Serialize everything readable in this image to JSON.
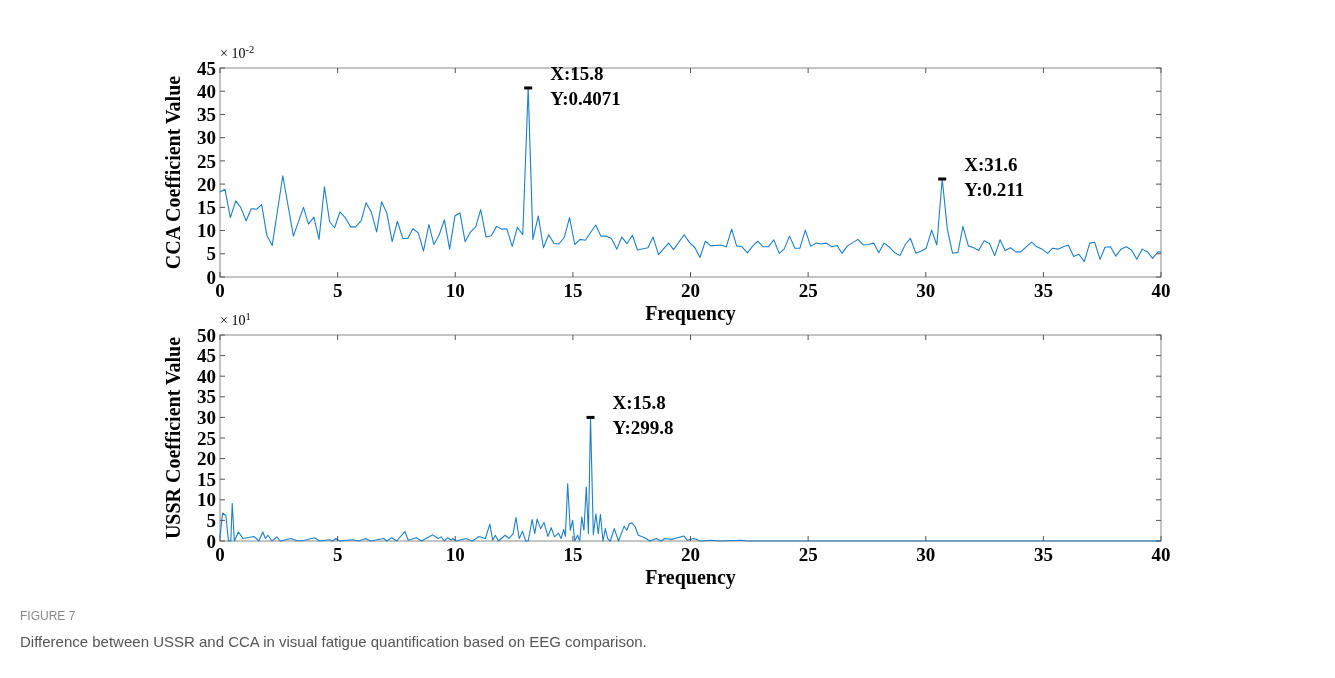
{
  "chart_data": [
    {
      "type": "line",
      "xlabel": "Frequency",
      "ylabel": "CCA Coefficient Value",
      "xlim": [
        0,
        40
      ],
      "ylim": [
        0,
        45
      ],
      "xticks": [
        0,
        5,
        10,
        15,
        20,
        25,
        30,
        35,
        40
      ],
      "yticks": [
        0,
        5,
        10,
        15,
        20,
        25,
        30,
        35,
        40,
        45
      ],
      "grid": false,
      "annotations": [
        "× 10$^{-2}$",
        {
          "text": "X:15.8\nY:0.4071",
          "x": 13.1,
          "y": 40.7
        },
        {
          "text": "X:31.6\nY:0.211",
          "x": 30.7,
          "y": 21.1
        }
      ],
      "series": [
        {
          "color": "#1f7fc8",
          "x": [
            0,
            0.21,
            0.44,
            0.67,
            0.88,
            1.11,
            1.33,
            1.56,
            1.77,
            1.99,
            2.22,
            2.67,
            3.12,
            3.55,
            3.76,
            3.99,
            4.21,
            4.44,
            4.66,
            4.87,
            5.1,
            5.32,
            5.55,
            5.76,
            6.0,
            6.21,
            6.43,
            6.66,
            6.87,
            7.09,
            7.32,
            7.54,
            7.77,
            7.98,
            8.2,
            8.43,
            8.65,
            8.88,
            9.09,
            9.31,
            9.54,
            9.76,
            9.99,
            10.2,
            10.42,
            10.65,
            10.87,
            11.08,
            11.31,
            11.53,
            11.76,
            11.98,
            12.19,
            12.42,
            12.64,
            12.87,
            13.1,
            13.3,
            13.53,
            13.75,
            13.97,
            14.2,
            14.41,
            14.63,
            14.86,
            15.08,
            15.31,
            15.53,
            15.97,
            16.19,
            16.42,
            16.64,
            16.87,
            17.08,
            17.3,
            17.53,
            17.75,
            18.19,
            18.41,
            18.64,
            19.07,
            19.28,
            19.73,
            19.96,
            20.19,
            20.4,
            20.63,
            20.86,
            21.29,
            21.52,
            21.75,
            21.96,
            22.19,
            22.42,
            22.65,
            22.86,
            23.09,
            23.31,
            23.54,
            23.77,
            23.98,
            24.21,
            24.44,
            24.65,
            24.88,
            25.11,
            25.34,
            25.55,
            25.78,
            26.0,
            26.23,
            26.44,
            26.67,
            26.9,
            27.12,
            27.34,
            27.56,
            27.79,
            28.0,
            28.23,
            28.46,
            28.69,
            28.9,
            29.13,
            29.35,
            29.58,
            29.81,
            30.02,
            30.25,
            30.47,
            30.7,
            30.92,
            31.14,
            31.37,
            31.58,
            31.81,
            32.04,
            32.25,
            32.48,
            32.71,
            32.93,
            33.16,
            33.37,
            33.6,
            33.83,
            34.04,
            34.27,
            34.5,
            34.72,
            34.95,
            35.18,
            35.39,
            35.62,
            35.85,
            36.06,
            36.29,
            36.51,
            36.74,
            36.97,
            37.18,
            37.41,
            37.62,
            37.85,
            38.08,
            38.3,
            38.52,
            38.75,
            38.97,
            39.2,
            39.43,
            39.64,
            39.87,
            40
          ],
          "values": [
            18.3,
            18.9,
            12.8,
            16.4,
            15.0,
            12.1,
            14.7,
            14.6,
            15.6,
            9.0,
            6.8,
            21.8,
            8.8,
            15.0,
            11.4,
            12.9,
            8.1,
            19.4,
            11.9,
            10.6,
            14.0,
            12.8,
            10.8,
            10.8,
            12.1,
            16.0,
            14.0,
            9.7,
            16.2,
            13.8,
            7.6,
            12.0,
            8.3,
            8.3,
            10.4,
            9.5,
            5.6,
            11.3,
            7.0,
            9.0,
            12.3,
            6.0,
            13.2,
            13.8,
            7.6,
            9.7,
            10.8,
            14.5,
            8.6,
            8.9,
            10.9,
            10.3,
            10.4,
            6.6,
            10.7,
            9.1,
            40.7,
            8.1,
            13.1,
            6.3,
            9.1,
            7.2,
            7.1,
            8.5,
            12.8,
            7.0,
            8.1,
            7.9,
            11.2,
            8.8,
            8.8,
            8.3,
            6.0,
            8.6,
            7.2,
            9.0,
            5.8,
            6.3,
            8.6,
            4.8,
            7.3,
            5.9,
            9.1,
            7.4,
            6.3,
            4.2,
            7.7,
            6.7,
            6.9,
            6.5,
            10.3,
            6.7,
            6.5,
            5.2,
            6.7,
            7.7,
            6.5,
            6.5,
            8.0,
            5.1,
            6.0,
            8.8,
            6.2,
            6.2,
            10.1,
            6.6,
            7.3,
            7.1,
            7.3,
            6.5,
            6.8,
            5.1,
            6.7,
            7.4,
            8.1,
            6.9,
            7.0,
            7.3,
            5.2,
            7.3,
            6.4,
            5.2,
            4.6,
            7.0,
            8.3,
            5.1,
            5.6,
            6.2,
            10.1,
            6.9,
            21.1,
            10.2,
            5.1,
            5.3,
            10.9,
            6.7,
            6.3,
            5.7,
            7.8,
            7.2,
            4.6,
            8.0,
            5.7,
            6.3,
            5.4,
            5.4,
            6.5,
            7.5,
            6.5,
            6.0,
            5.1,
            6.2,
            6.0,
            6.5,
            6.9,
            4.4,
            4.9,
            3.3,
            7.3,
            7.5,
            3.8,
            6.4,
            6.5,
            4.5,
            6.0,
            6.5,
            5.8,
            3.8,
            6.0,
            5.4,
            4.0,
            5.4,
            5.4
          ]
        }
      ]
    },
    {
      "type": "line",
      "xlabel": "Frequency",
      "ylabel": "USSR Coefficient Value",
      "xlim": [
        0,
        40
      ],
      "ylim": [
        0,
        50
      ],
      "xticks": [
        0,
        5,
        10,
        15,
        20,
        25,
        30,
        35,
        40
      ],
      "yticks": [
        0,
        5,
        10,
        15,
        20,
        25,
        30,
        35,
        40,
        45,
        50
      ],
      "grid": false,
      "annotations": [
        "× 10$^{1}$",
        {
          "text": "X:15.8\nY:299.8",
          "x": 15.75,
          "y": 30.0
        },
        "FIGURE 7",
        "Difference between USSR and CCA in visual fatigue quantification based on EEG comparison."
      ],
      "series": [
        {
          "color": "#1f7fc8",
          "x": [
            0,
            0.11,
            0.25,
            0.36,
            0.46,
            0.52,
            0.61,
            0.78,
            0.98,
            1.44,
            1.65,
            1.82,
            1.93,
            2.04,
            2.21,
            2.42,
            2.56,
            3.02,
            3.32,
            3.6,
            4.02,
            4.23,
            4.65,
            4.79,
            4.93,
            5.07,
            5.63,
            5.91,
            6.19,
            6.4,
            6.96,
            7.09,
            7.3,
            7.51,
            7.86,
            8.0,
            8.35,
            8.56,
            9.05,
            9.26,
            9.4,
            9.54,
            9.68,
            9.82,
            9.89,
            10.03,
            10.45,
            10.73,
            11.01,
            11.28,
            11.47,
            11.59,
            11.7,
            11.84,
            12.12,
            12.29,
            12.46,
            12.58,
            12.72,
            12.86,
            12.99,
            13.1,
            13.27,
            13.38,
            13.48,
            13.63,
            13.77,
            13.94,
            14.08,
            14.22,
            14.39,
            14.5,
            14.61,
            14.68,
            14.78,
            14.89,
            14.99,
            15.08,
            15.2,
            15.29,
            15.38,
            15.47,
            15.57,
            15.66,
            15.75,
            15.87,
            15.98,
            16.08,
            16.17,
            16.28,
            16.38,
            16.48,
            16.59,
            16.76,
            16.94,
            17.18,
            17.29,
            17.4,
            17.51,
            17.65,
            17.78,
            18.06,
            18.27,
            18.55,
            18.76,
            18.9,
            19.2,
            19.72,
            19.86,
            20.14,
            20.43,
            20.85,
            21.28,
            22.14,
            22.42,
            40
          ],
          "values": [
            1.0,
            6.8,
            6.2,
            0,
            0,
            9.1,
            0,
            2.2,
            0.6,
            1.1,
            0,
            2.2,
            0.6,
            1.4,
            0,
            1.0,
            0,
            0.6,
            0,
            0.2,
            0.8,
            0,
            0.3,
            0,
            0.6,
            0,
            0.3,
            0,
            0.6,
            0,
            0.6,
            0,
            0.8,
            0,
            2.3,
            0.2,
            0.8,
            0,
            1.5,
            0.6,
            1.0,
            0,
            0.8,
            0.2,
            0.6,
            0,
            0.6,
            0,
            1.1,
            0.6,
            4.1,
            0.2,
            1.4,
            0,
            1.4,
            0.6,
            1.8,
            5.7,
            0.6,
            2.4,
            0,
            0,
            5.2,
            1.8,
            5.3,
            3.0,
            4.5,
            1.1,
            3.2,
            1.0,
            1.9,
            0.6,
            2.8,
            1.1,
            13.9,
            2.6,
            5.0,
            0,
            1.4,
            0,
            5.8,
            2.6,
            13.1,
            1.8,
            30.0,
            1.6,
            6.6,
            1.8,
            6.5,
            0,
            3.0,
            0.6,
            0,
            3.0,
            0,
            3.6,
            2.6,
            4.2,
            4.4,
            3.4,
            1.4,
            0.8,
            0,
            0.6,
            0,
            0.6,
            0.4,
            1.2,
            0.2,
            0.6,
            0,
            0.2,
            0,
            0.2,
            0,
            0
          ]
        }
      ]
    }
  ]
}
